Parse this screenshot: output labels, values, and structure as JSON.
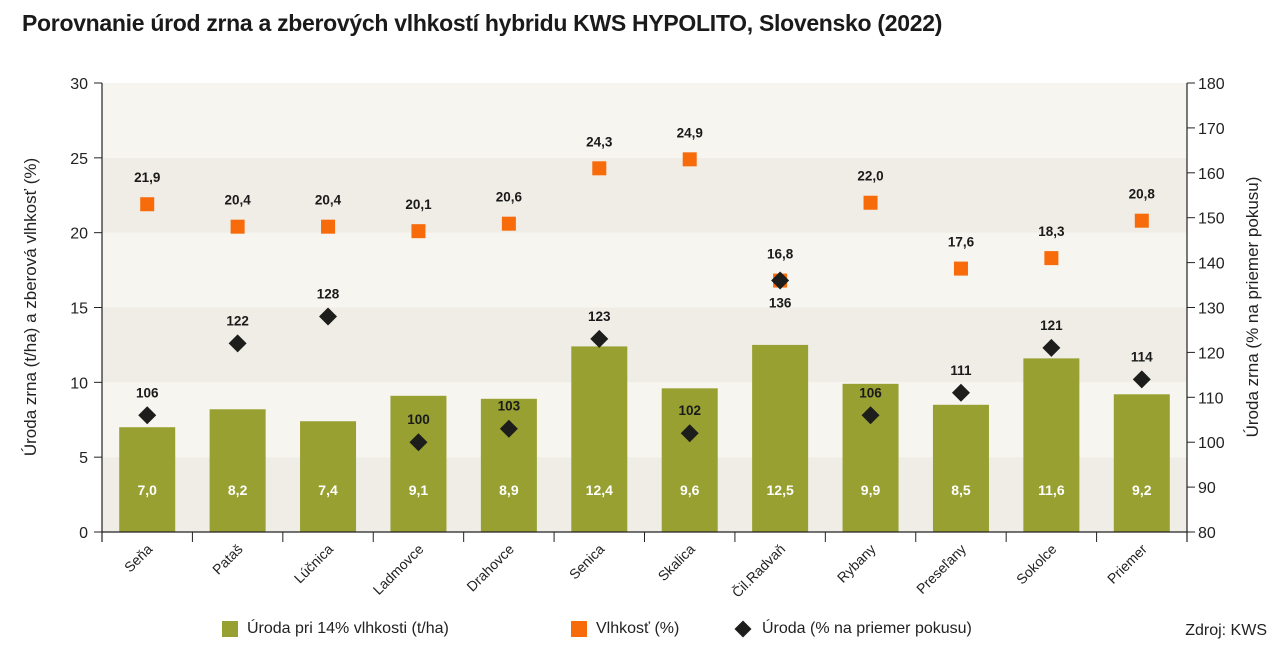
{
  "title": "Porovnanie úrod zrna a zberových vlhkostí hybridu KWS HYPOLITO, Slovensko (2022)",
  "source": "Zdroj: KWS",
  "colors": {
    "bar": "#97a030",
    "moisture": "#f76b0a",
    "yield_pct": "#1d1d1b",
    "band_dark": "#efede5",
    "band_light": "#f7f5f0",
    "axis": "#222222"
  },
  "legend": [
    {
      "label": "Úroda pri 14% vlhkosti (t/ha)",
      "marker": "square",
      "series": "bar"
    },
    {
      "label": "Vlhkosť (%)",
      "marker": "square",
      "series": "moisture"
    },
    {
      "label": "Úroda (% na priemer pokusu)",
      "marker": "diamond",
      "series": "yield_pct"
    }
  ],
  "chart_data": {
    "type": "bar",
    "title": "Porovnanie úrod zrna a zberových vlhkostí hybridu KWS HYPOLITO, Slovensko (2022)",
    "categories": [
      "Seňa",
      "Pataš",
      "Lúčnica",
      "Ladmovce",
      "Drahovce",
      "Senica",
      "Skalica",
      "Čil.Radvaň",
      "Rybany",
      "Preseľany",
      "Sokolce",
      "Priemer"
    ],
    "series": [
      {
        "name": "Úroda pri 14% vlhkosti (t/ha)",
        "type": "bar",
        "axis": "left",
        "values": [
          7.0,
          8.2,
          7.4,
          9.1,
          8.9,
          12.4,
          9.6,
          12.5,
          9.9,
          8.5,
          11.6,
          9.2
        ],
        "labels": [
          "7,0",
          "8,2",
          "7,4",
          "9,1",
          "8,9",
          "12,4",
          "9,6",
          "12,5",
          "9,9",
          "8,5",
          "11,6",
          "9,2"
        ]
      },
      {
        "name": "Vlhkosť (%)",
        "type": "scatter",
        "marker": "square",
        "axis": "left",
        "values": [
          21.9,
          20.4,
          20.4,
          20.1,
          20.6,
          24.3,
          24.9,
          16.8,
          22.0,
          17.6,
          18.3,
          20.8
        ],
        "labels": [
          "21,9",
          "20,4",
          "20,4",
          "20,1",
          "20,6",
          "24,3",
          "24,9",
          "16,8",
          "22,0",
          "17,6",
          "18,3",
          "20,8"
        ]
      },
      {
        "name": "Úroda (% na priemer pokusu)",
        "type": "scatter",
        "marker": "diamond",
        "axis": "right",
        "values": [
          106,
          122,
          128,
          100,
          103,
          123,
          102,
          136,
          106,
          111,
          121,
          114
        ],
        "labels": [
          "106",
          "122",
          "128",
          "100",
          "103",
          "123",
          "102",
          "136",
          "106",
          "111",
          "121",
          "114"
        ]
      }
    ],
    "ylabel": "Úroda zrna (t/ha) a zberová vlhkosť (%)",
    "y2label": "Úroda zrna (% na priemer pokusu)",
    "ylim": [
      0,
      30
    ],
    "y2lim": [
      80,
      180
    ],
    "yticks": [
      0,
      5,
      10,
      15,
      20,
      25,
      30
    ],
    "y2ticks": [
      80,
      90,
      100,
      110,
      120,
      130,
      140,
      150,
      160,
      170,
      180
    ],
    "grid": "alternating horizontal bands every 5 units",
    "legend_position": "bottom",
    "xlabel": ""
  }
}
